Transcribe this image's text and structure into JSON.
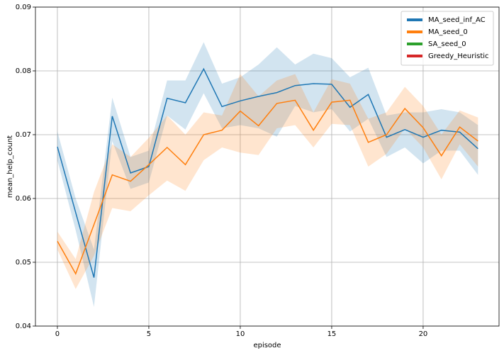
{
  "chart_data": {
    "type": "line",
    "x_label": "episode",
    "y_label": "mean_help_count",
    "x": [
      0,
      1,
      2,
      3,
      4,
      5,
      6,
      7,
      8,
      9,
      10,
      11,
      12,
      13,
      14,
      15,
      16,
      17,
      18,
      19,
      20,
      21,
      22,
      23
    ],
    "xlim": [
      -1.2,
      24.15
    ],
    "xticks": [
      0,
      5,
      10,
      15,
      20
    ],
    "ylim": [
      0.04,
      0.09
    ],
    "yticks": [
      0.04,
      0.05,
      0.06,
      0.07,
      0.08,
      0.09
    ],
    "grid": true,
    "legend": "upper right",
    "series": [
      {
        "name": "MA_seed_inf_AC",
        "color": "#1f77b4",
        "values": [
          0.0681,
          0.0578,
          0.0476,
          0.0729,
          0.064,
          0.065,
          0.0757,
          0.075,
          0.0803,
          0.0744,
          0.0753,
          0.076,
          0.0766,
          0.0777,
          0.078,
          0.0779,
          0.0743,
          0.0763,
          0.0696,
          0.0708,
          0.0696,
          0.0707,
          0.0704,
          0.0678
        ],
        "lower": [
          0.066,
          0.055,
          0.043,
          0.069,
          0.0615,
          0.0625,
          0.073,
          0.0708,
          0.0765,
          0.071,
          0.0715,
          0.071,
          0.0697,
          0.0745,
          0.0735,
          0.074,
          0.0705,
          0.0725,
          0.0665,
          0.068,
          0.0655,
          0.0675,
          0.0675,
          0.0637
        ],
        "upper": [
          0.0705,
          0.06,
          0.052,
          0.0758,
          0.0665,
          0.0675,
          0.0785,
          0.0785,
          0.0845,
          0.078,
          0.079,
          0.081,
          0.0837,
          0.081,
          0.0827,
          0.082,
          0.079,
          0.0805,
          0.073,
          0.0735,
          0.0735,
          0.074,
          0.0735,
          0.0715
        ]
      },
      {
        "name": "MA_seed_0",
        "color": "#ff7f0e",
        "values": [
          0.0533,
          0.0482,
          0.0559,
          0.0637,
          0.0627,
          0.0653,
          0.068,
          0.0653,
          0.07,
          0.0707,
          0.0737,
          0.0714,
          0.0749,
          0.0754,
          0.0707,
          0.0751,
          0.0754,
          0.0688,
          0.07,
          0.0741,
          0.0711,
          0.0667,
          0.0712,
          0.069
        ],
        "lower": [
          0.052,
          0.0458,
          0.051,
          0.0585,
          0.058,
          0.0605,
          0.0628,
          0.0612,
          0.066,
          0.068,
          0.0672,
          0.0668,
          0.071,
          0.0715,
          0.068,
          0.0717,
          0.0715,
          0.065,
          0.067,
          0.071,
          0.068,
          0.063,
          0.0685,
          0.065
        ],
        "upper": [
          0.0548,
          0.0505,
          0.061,
          0.0685,
          0.0665,
          0.0695,
          0.073,
          0.07,
          0.0735,
          0.073,
          0.0795,
          0.076,
          0.0785,
          0.0795,
          0.0735,
          0.0787,
          0.078,
          0.0725,
          0.0735,
          0.0775,
          0.0745,
          0.07,
          0.0738,
          0.0727
        ]
      },
      {
        "name": "SA_seed_0",
        "color": "#2ca02c",
        "values": [
          null,
          null,
          null,
          null,
          null,
          null,
          null,
          null,
          null,
          null,
          null,
          null,
          null,
          null,
          null,
          null,
          null,
          null,
          null,
          null,
          null,
          null,
          null,
          null
        ]
      },
      {
        "name": "Greedy_Heuristic",
        "color": "#d62728",
        "values": [
          null,
          null,
          null,
          null,
          null,
          null,
          null,
          null,
          null,
          null,
          null,
          null,
          null,
          null,
          null,
          null,
          null,
          null,
          null,
          null,
          null,
          null,
          null,
          null
        ]
      }
    ]
  }
}
